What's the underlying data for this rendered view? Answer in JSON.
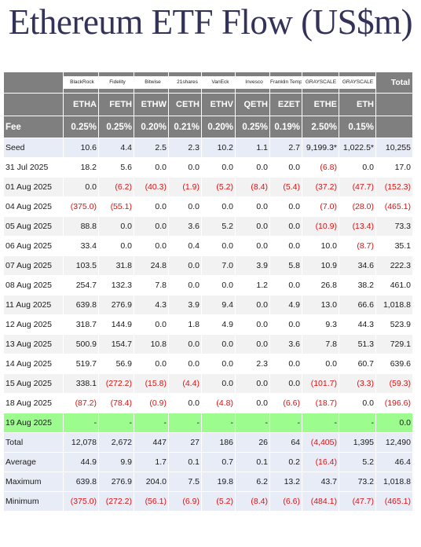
{
  "title": "Ethereum ETF Flow (US$m)",
  "header": {
    "logos": [
      {
        "issuer": "BlackRock"
      },
      {
        "issuer": "Fidelity"
      },
      {
        "issuer": "Bitwise"
      },
      {
        "issuer": "21shares"
      },
      {
        "issuer": "VanEck"
      },
      {
        "issuer": "Invesco"
      },
      {
        "issuer": "Franklin Templeton"
      },
      {
        "issuer": "GRAYSCALE"
      },
      {
        "issuer": "GRAYSCALE"
      }
    ],
    "total_label": "Total",
    "tickers": [
      "ETHA",
      "FETH",
      "ETHW",
      "CETH",
      "ETHV",
      "QETH",
      "EZET",
      "ETHE",
      "ETH"
    ],
    "fee_label": "Fee",
    "fees": [
      "0.25%",
      "0.25%",
      "0.20%",
      "0.21%",
      "0.20%",
      "0.25%",
      "0.19%",
      "2.50%",
      "0.15%"
    ]
  },
  "rows": [
    {
      "label": "Seed",
      "cells": [
        "10.6",
        "4.4",
        "2.5",
        "2.3",
        "10.2",
        "1.1",
        "2.7",
        "9,199.3*",
        "1,022.5*",
        "10,255"
      ]
    },
    {
      "label": "31 Jul 2025",
      "cells": [
        "18.2",
        "5.6",
        "0.0",
        "0.0",
        "0.0",
        "0.0",
        "0.0",
        "(6.8)",
        "0.0",
        "17.0"
      ]
    },
    {
      "label": "01 Aug 2025",
      "cells": [
        "0.0",
        "(6.2)",
        "(40.3)",
        "(1.9)",
        "(5.2)",
        "(8.4)",
        "(5.4)",
        "(37.2)",
        "(47.7)",
        "(152.3)"
      ]
    },
    {
      "label": "04 Aug 2025",
      "cells": [
        "(375.0)",
        "(55.1)",
        "0.0",
        "0.0",
        "0.0",
        "0.0",
        "0.0",
        "(7.0)",
        "(28.0)",
        "(465.1)"
      ]
    },
    {
      "label": "05 Aug 2025",
      "cells": [
        "88.8",
        "0.0",
        "0.0",
        "3.6",
        "5.2",
        "0.0",
        "0.0",
        "(10.9)",
        "(13.4)",
        "73.3"
      ]
    },
    {
      "label": "06 Aug 2025",
      "cells": [
        "33.4",
        "0.0",
        "0.0",
        "0.4",
        "0.0",
        "0.0",
        "0.0",
        "10.0",
        "(8.7)",
        "35.1"
      ]
    },
    {
      "label": "07 Aug 2025",
      "cells": [
        "103.5",
        "31.8",
        "24.8",
        "0.0",
        "7.0",
        "3.9",
        "5.8",
        "10.9",
        "34.6",
        "222.3"
      ]
    },
    {
      "label": "08 Aug 2025",
      "cells": [
        "254.7",
        "132.3",
        "7.8",
        "0.0",
        "0.0",
        "1.2",
        "0.0",
        "26.8",
        "38.2",
        "461.0"
      ]
    },
    {
      "label": "11 Aug 2025",
      "cells": [
        "639.8",
        "276.9",
        "4.3",
        "3.9",
        "9.4",
        "0.0",
        "4.9",
        "13.0",
        "66.6",
        "1,018.8"
      ]
    },
    {
      "label": "12 Aug 2025",
      "cells": [
        "318.7",
        "144.9",
        "0.0",
        "1.8",
        "4.9",
        "0.0",
        "0.0",
        "9.3",
        "44.3",
        "523.9"
      ]
    },
    {
      "label": "13 Aug 2025",
      "cells": [
        "500.9",
        "154.7",
        "10.8",
        "0.0",
        "0.0",
        "0.0",
        "3.6",
        "7.8",
        "51.3",
        "729.1"
      ]
    },
    {
      "label": "14 Aug 2025",
      "cells": [
        "519.7",
        "56.9",
        "0.0",
        "0.0",
        "0.0",
        "2.3",
        "0.0",
        "0.0",
        "60.7",
        "639.6"
      ]
    },
    {
      "label": "15 Aug 2025",
      "cells": [
        "338.1",
        "(272.2)",
        "(15.8)",
        "(4.4)",
        "0.0",
        "0.0",
        "0.0",
        "(101.7)",
        "(3.3)",
        "(59.3)"
      ]
    },
    {
      "label": "18 Aug 2025",
      "cells": [
        "(87.2)",
        "(78.4)",
        "(0.9)",
        "0.0",
        "(4.8)",
        "0.0",
        "(6.6)",
        "(18.7)",
        "0.0",
        "(196.6)"
      ]
    },
    {
      "label": "19 Aug 2025",
      "cells": [
        "-",
        "-",
        "-",
        "-",
        "-",
        "-",
        "-",
        "-",
        "-",
        "0.0"
      ]
    },
    {
      "label": "Total",
      "cells": [
        "12,078",
        "2,672",
        "447",
        "27",
        "186",
        "26",
        "64",
        "(4,405)",
        "1,395",
        "12,490"
      ]
    },
    {
      "label": "Average",
      "cells": [
        "44.9",
        "9.9",
        "1.7",
        "0.1",
        "0.7",
        "0.1",
        "0.2",
        "(16.4)",
        "5.2",
        "46.4"
      ]
    },
    {
      "label": "Maximum",
      "cells": [
        "639.8",
        "276.9",
        "204.0",
        "7.5",
        "19.8",
        "6.2",
        "13.2",
        "43.7",
        "73.2",
        "1,018.8"
      ]
    },
    {
      "label": "Minimum",
      "cells": [
        "(375.0)",
        "(272.2)",
        "(56.1)",
        "(6.9)",
        "(5.2)",
        "(8.4)",
        "(6.6)",
        "(484.1)",
        "(47.7)",
        "(465.1)"
      ]
    }
  ],
  "colors": {
    "header_bg": "#7f7f7f",
    "summary_bg": "#e8ecf7",
    "stripe_bg": "#f2f2f2",
    "highlight_bg": "#9cfc8e",
    "negative": "#e01010",
    "title": "#33335a"
  }
}
